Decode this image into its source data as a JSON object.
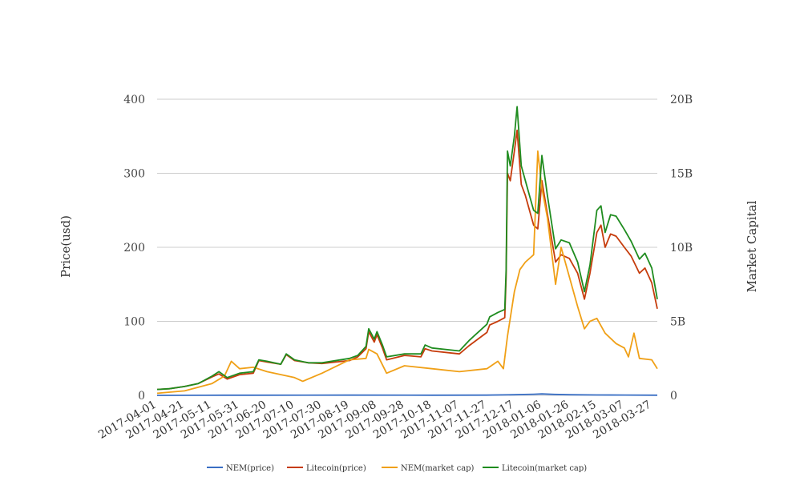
{
  "chart_data": {
    "type": "line",
    "title": "",
    "ylabel_left": "Price(usd)",
    "ylabel_right": "Market Capital",
    "ylim_left": [
      0,
      400
    ],
    "ylim_right": [
      0,
      20000000000
    ],
    "left_ticks": [
      "0",
      "100",
      "200",
      "300",
      "400"
    ],
    "left_tick_values": [
      0,
      100,
      200,
      300,
      400
    ],
    "right_ticks": [
      "0",
      "5B",
      "10B",
      "15B",
      "20B"
    ],
    "right_tick_values": [
      0,
      5000000000,
      10000000000,
      15000000000,
      20000000000
    ],
    "x_ticks": [
      "2017-04-01",
      "2017-04-21",
      "2017-05-11",
      "2017-05-31",
      "2017-06-20",
      "2017-07-10",
      "2017-07-30",
      "2017-08-19",
      "2017-09-08",
      "2017-09-28",
      "2017-10-18",
      "2017-11-07",
      "2017-11-27",
      "2017-12-17",
      "2018-01-06",
      "2018-01-26",
      "2018-02-15",
      "2018-03-07",
      "2018-03-27"
    ],
    "x_range": [
      "2017-04-01",
      "2018-03-31"
    ],
    "grid": true,
    "legend_position": "bottom",
    "series": [
      {
        "name": "NEM(price)",
        "axis": "left",
        "color": "#3a6fc4",
        "points": [
          [
            "2017-04-01",
            0.02
          ],
          [
            "2017-05-20",
            0.2
          ],
          [
            "2017-06-10",
            0.25
          ],
          [
            "2017-08-19",
            0.3
          ],
          [
            "2017-10-18",
            0.2
          ],
          [
            "2017-11-27",
            0.3
          ],
          [
            "2017-12-17",
            0.9
          ],
          [
            "2017-12-31",
            1.5
          ],
          [
            "2018-01-06",
            1.9
          ],
          [
            "2018-01-15",
            1.3
          ],
          [
            "2018-01-26",
            0.9
          ],
          [
            "2018-02-15",
            0.5
          ],
          [
            "2018-03-07",
            0.4
          ],
          [
            "2018-03-31",
            0.2
          ]
        ]
      },
      {
        "name": "Litecoin(price)",
        "axis": "left",
        "color": "#c63c0c",
        "points": [
          [
            "2017-04-01",
            8
          ],
          [
            "2017-04-10",
            9
          ],
          [
            "2017-04-21",
            12
          ],
          [
            "2017-05-01",
            16
          ],
          [
            "2017-05-11",
            25
          ],
          [
            "2017-05-16",
            29
          ],
          [
            "2017-05-22",
            22
          ],
          [
            "2017-05-31",
            28
          ],
          [
            "2017-06-10",
            30
          ],
          [
            "2017-06-14",
            47
          ],
          [
            "2017-06-20",
            45
          ],
          [
            "2017-06-30",
            42
          ],
          [
            "2017-07-04",
            55
          ],
          [
            "2017-07-10",
            47
          ],
          [
            "2017-07-20",
            44
          ],
          [
            "2017-07-30",
            43
          ],
          [
            "2017-08-19",
            47
          ],
          [
            "2017-08-25",
            52
          ],
          [
            "2017-08-31",
            63
          ],
          [
            "2017-09-02",
            86
          ],
          [
            "2017-09-06",
            72
          ],
          [
            "2017-09-08",
            82
          ],
          [
            "2017-09-12",
            64
          ],
          [
            "2017-09-15",
            48
          ],
          [
            "2017-09-28",
            54
          ],
          [
            "2017-10-10",
            52
          ],
          [
            "2017-10-13",
            63
          ],
          [
            "2017-10-18",
            60
          ],
          [
            "2017-11-07",
            56
          ],
          [
            "2017-11-14",
            67
          ],
          [
            "2017-11-27",
            85
          ],
          [
            "2017-11-29",
            95
          ],
          [
            "2017-12-05",
            100
          ],
          [
            "2017-12-10",
            105
          ],
          [
            "2017-12-11",
            160
          ],
          [
            "2017-12-12",
            300
          ],
          [
            "2017-12-14",
            290
          ],
          [
            "2017-12-17",
            330
          ],
          [
            "2017-12-19",
            358
          ],
          [
            "2017-12-22",
            285
          ],
          [
            "2017-12-25",
            270
          ],
          [
            "2017-12-31",
            230
          ],
          [
            "2018-01-03",
            225
          ],
          [
            "2018-01-06",
            290
          ],
          [
            "2018-01-10",
            245
          ],
          [
            "2018-01-16",
            180
          ],
          [
            "2018-01-20",
            190
          ],
          [
            "2018-01-26",
            185
          ],
          [
            "2018-02-01",
            165
          ],
          [
            "2018-02-06",
            130
          ],
          [
            "2018-02-10",
            165
          ],
          [
            "2018-02-15",
            220
          ],
          [
            "2018-02-18",
            230
          ],
          [
            "2018-02-21",
            200
          ],
          [
            "2018-02-25",
            218
          ],
          [
            "2018-03-01",
            215
          ],
          [
            "2018-03-07",
            200
          ],
          [
            "2018-03-12",
            188
          ],
          [
            "2018-03-18",
            165
          ],
          [
            "2018-03-22",
            172
          ],
          [
            "2018-03-27",
            152
          ],
          [
            "2018-03-31",
            117
          ]
        ]
      },
      {
        "name": "NEM(market cap)",
        "axis": "right",
        "color": "#f0a017",
        "points": [
          [
            "2017-04-01",
            140000000
          ],
          [
            "2017-04-21",
            300000000
          ],
          [
            "2017-05-11",
            800000000
          ],
          [
            "2017-05-20",
            1300000000
          ],
          [
            "2017-05-25",
            2300000000
          ],
          [
            "2017-05-31",
            1800000000
          ],
          [
            "2017-06-10",
            1900000000
          ],
          [
            "2017-06-20",
            1600000000
          ],
          [
            "2017-07-10",
            1200000000
          ],
          [
            "2017-07-16",
            950000000
          ],
          [
            "2017-07-30",
            1500000000
          ],
          [
            "2017-08-19",
            2400000000
          ],
          [
            "2017-08-31",
            2500000000
          ],
          [
            "2017-09-02",
            3100000000
          ],
          [
            "2017-09-08",
            2800000000
          ],
          [
            "2017-09-15",
            1500000000
          ],
          [
            "2017-09-28",
            2000000000
          ],
          [
            "2017-10-18",
            1800000000
          ],
          [
            "2017-11-07",
            1600000000
          ],
          [
            "2017-11-27",
            1800000000
          ],
          [
            "2017-12-05",
            2300000000
          ],
          [
            "2017-12-09",
            1800000000
          ],
          [
            "2017-12-12",
            4000000000
          ],
          [
            "2017-12-17",
            7000000000
          ],
          [
            "2017-12-21",
            8500000000
          ],
          [
            "2017-12-25",
            9000000000
          ],
          [
            "2017-12-31",
            9500000000
          ],
          [
            "2018-01-03",
            16500000000
          ],
          [
            "2018-01-06",
            14000000000
          ],
          [
            "2018-01-10",
            12000000000
          ],
          [
            "2018-01-16",
            7500000000
          ],
          [
            "2018-01-20",
            10000000000
          ],
          [
            "2018-01-26",
            8000000000
          ],
          [
            "2018-02-01",
            6000000000
          ],
          [
            "2018-02-06",
            4500000000
          ],
          [
            "2018-02-10",
            5000000000
          ],
          [
            "2018-02-15",
            5200000000
          ],
          [
            "2018-02-21",
            4200000000
          ],
          [
            "2018-03-01",
            3500000000
          ],
          [
            "2018-03-07",
            3200000000
          ],
          [
            "2018-03-10",
            2600000000
          ],
          [
            "2018-03-14",
            4200000000
          ],
          [
            "2018-03-18",
            2500000000
          ],
          [
            "2018-03-27",
            2400000000
          ],
          [
            "2018-03-31",
            1800000000
          ]
        ]
      },
      {
        "name": "Litecoin(market cap)",
        "axis": "right",
        "color": "#1f8c1f",
        "points": [
          [
            "2017-04-01",
            400000000
          ],
          [
            "2017-04-10",
            450000000
          ],
          [
            "2017-04-21",
            600000000
          ],
          [
            "2017-05-01",
            800000000
          ],
          [
            "2017-05-11",
            1300000000
          ],
          [
            "2017-05-16",
            1600000000
          ],
          [
            "2017-05-22",
            1200000000
          ],
          [
            "2017-05-31",
            1500000000
          ],
          [
            "2017-06-10",
            1600000000
          ],
          [
            "2017-06-14",
            2400000000
          ],
          [
            "2017-06-20",
            2300000000
          ],
          [
            "2017-06-30",
            2100000000
          ],
          [
            "2017-07-04",
            2800000000
          ],
          [
            "2017-07-10",
            2400000000
          ],
          [
            "2017-07-20",
            2200000000
          ],
          [
            "2017-07-30",
            2200000000
          ],
          [
            "2017-08-19",
            2500000000
          ],
          [
            "2017-08-25",
            2700000000
          ],
          [
            "2017-08-31",
            3300000000
          ],
          [
            "2017-09-02",
            4500000000
          ],
          [
            "2017-09-06",
            3800000000
          ],
          [
            "2017-09-08",
            4300000000
          ],
          [
            "2017-09-12",
            3400000000
          ],
          [
            "2017-09-15",
            2600000000
          ],
          [
            "2017-09-28",
            2800000000
          ],
          [
            "2017-10-10",
            2800000000
          ],
          [
            "2017-10-13",
            3400000000
          ],
          [
            "2017-10-18",
            3200000000
          ],
          [
            "2017-11-07",
            3000000000
          ],
          [
            "2017-11-14",
            3700000000
          ],
          [
            "2017-11-27",
            4800000000
          ],
          [
            "2017-11-29",
            5300000000
          ],
          [
            "2017-12-05",
            5600000000
          ],
          [
            "2017-12-10",
            5800000000
          ],
          [
            "2017-12-11",
            8500000000
          ],
          [
            "2017-12-12",
            16500000000
          ],
          [
            "2017-12-14",
            15500000000
          ],
          [
            "2017-12-17",
            17500000000
          ],
          [
            "2017-12-19",
            19500000000
          ],
          [
            "2017-12-22",
            15500000000
          ],
          [
            "2017-12-25",
            14500000000
          ],
          [
            "2017-12-31",
            12500000000
          ],
          [
            "2018-01-03",
            12300000000
          ],
          [
            "2018-01-06",
            16200000000
          ],
          [
            "2018-01-10",
            13500000000
          ],
          [
            "2018-01-16",
            9900000000
          ],
          [
            "2018-01-20",
            10500000000
          ],
          [
            "2018-01-26",
            10300000000
          ],
          [
            "2018-02-01",
            9000000000
          ],
          [
            "2018-02-06",
            7000000000
          ],
          [
            "2018-02-10",
            8800000000
          ],
          [
            "2018-02-15",
            12500000000
          ],
          [
            "2018-02-18",
            12800000000
          ],
          [
            "2018-02-21",
            11000000000
          ],
          [
            "2018-02-25",
            12200000000
          ],
          [
            "2018-03-01",
            12100000000
          ],
          [
            "2018-03-07",
            11200000000
          ],
          [
            "2018-03-12",
            10400000000
          ],
          [
            "2018-03-18",
            9200000000
          ],
          [
            "2018-03-22",
            9600000000
          ],
          [
            "2018-03-27",
            8600000000
          ],
          [
            "2018-03-31",
            6500000000
          ]
        ]
      }
    ]
  }
}
